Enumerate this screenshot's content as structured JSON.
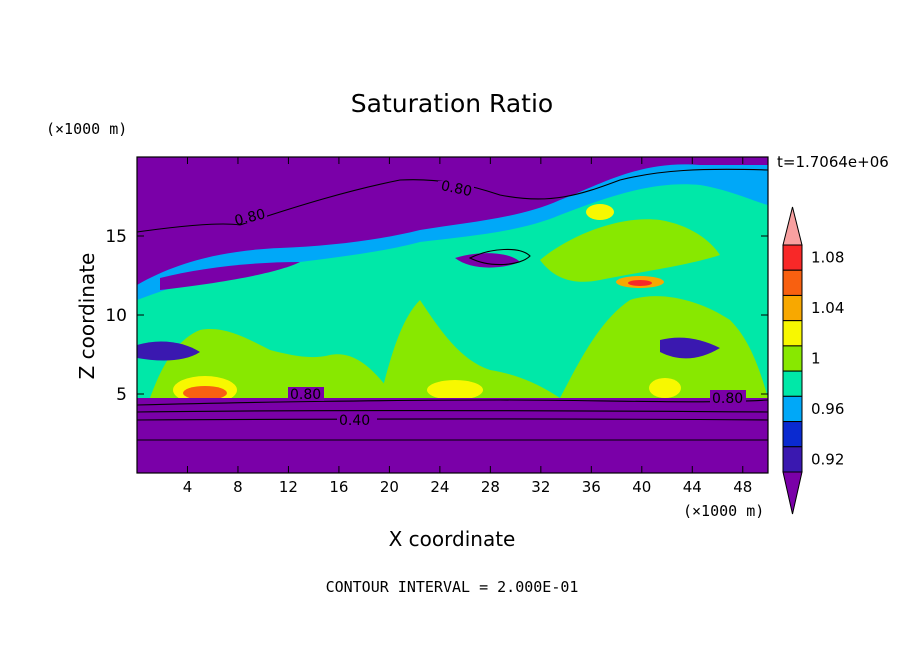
{
  "chart_data": {
    "type": "heatmap",
    "title": "Saturation Ratio",
    "xlabel": "X coordinate",
    "ylabel": "Z coordinate",
    "x_unit": "(×1000 m)",
    "y_unit": "(×1000 m)",
    "time_label": "t=1.7064e+06",
    "footer": "CONTOUR INTERVAL = 2.000E-01",
    "xlim": [
      0,
      50
    ],
    "ylim": [
      0,
      20
    ],
    "x_ticks": [
      4,
      8,
      12,
      16,
      20,
      24,
      28,
      32,
      36,
      40,
      44,
      48
    ],
    "y_ticks": [
      5,
      10,
      15
    ],
    "colorbar": {
      "levels": [
        0.92,
        0.96,
        1,
        1.04,
        1.08
      ],
      "level_labels": [
        "0.92",
        "0.96",
        "1",
        "1.04",
        "1.08"
      ],
      "colors": [
        "#7a00a8",
        "#3a18b0",
        "#0a2ad0",
        "#00a8f8",
        "#00e8a8",
        "#88e800",
        "#f8f800",
        "#f8a800",
        "#f86010",
        "#f82828",
        "#f8a0a0"
      ]
    },
    "contour_labels": [
      "0.80",
      "0.80",
      "0.80",
      "0.80",
      "0.40"
    ]
  }
}
